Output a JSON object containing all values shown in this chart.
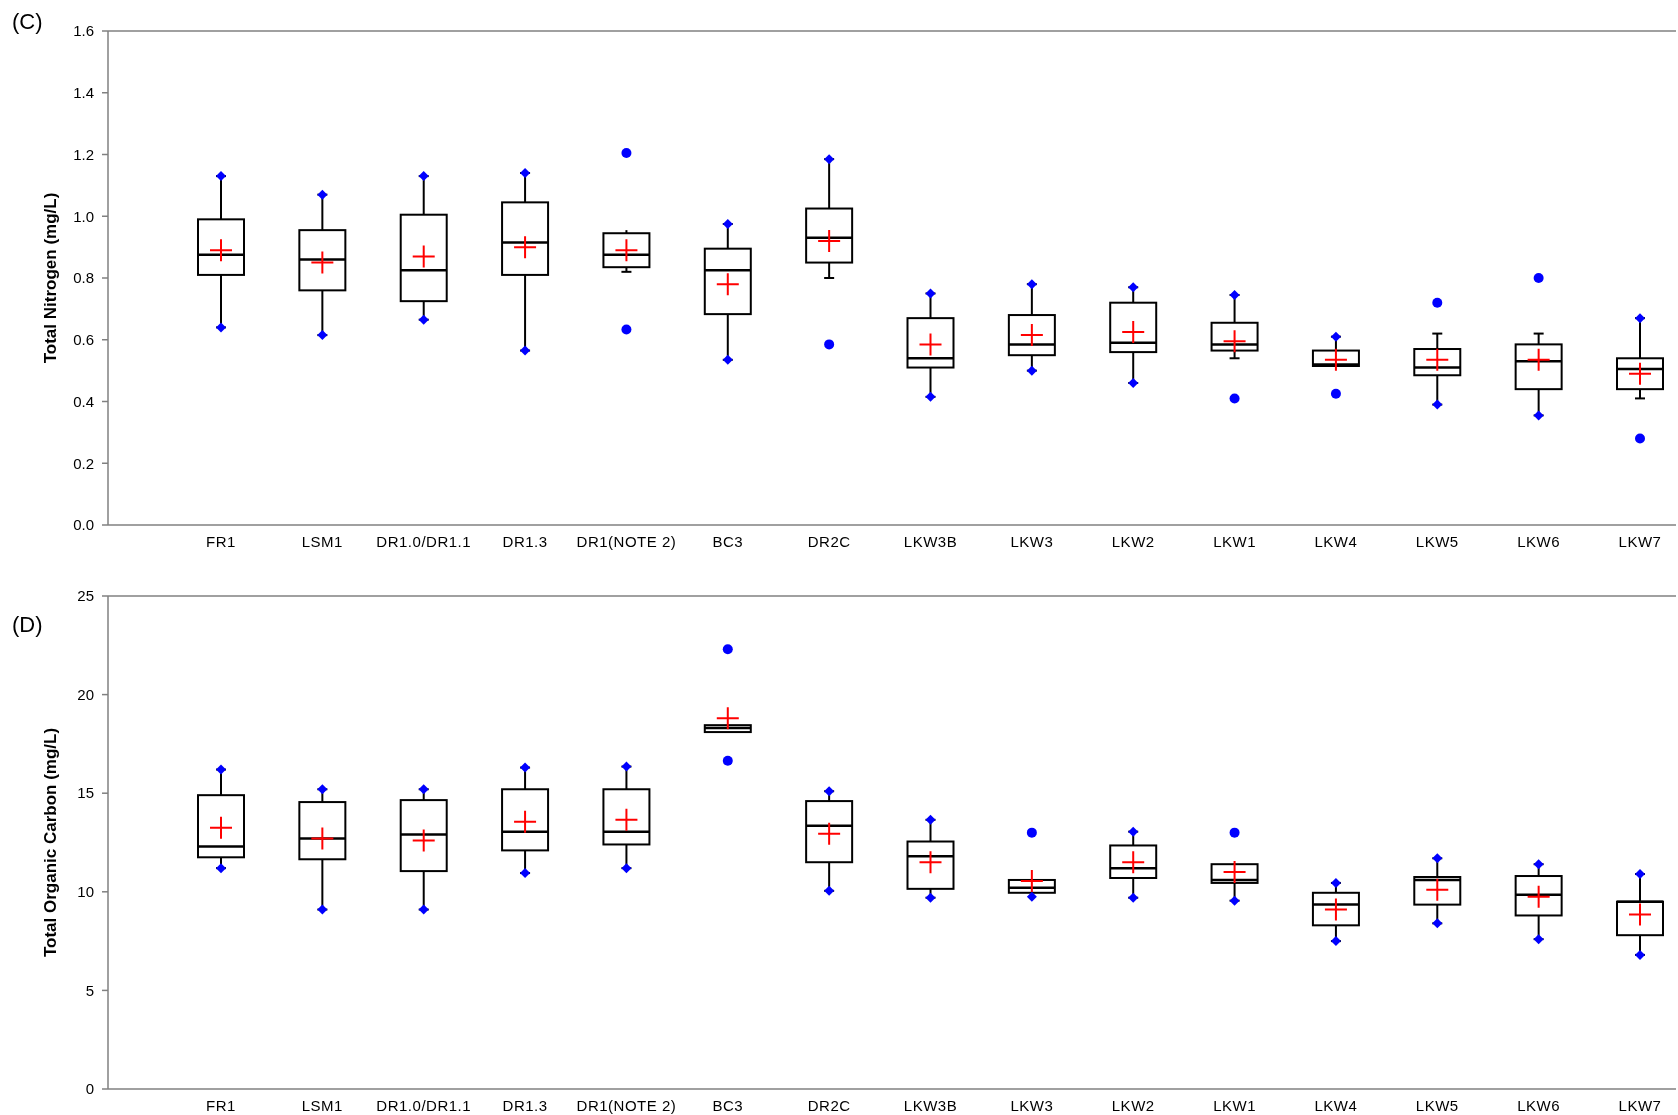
{
  "chart_data": [
    {
      "type": "box",
      "title": "(C)",
      "ylabel": "Total Nitrogen (mg/L)",
      "categories": [
        "FR1",
        "LSM1",
        "DR1.0/DR1.1",
        "DR1.3",
        "DR1(NOTE 2)",
        "BC3",
        "DR2C",
        "LKW3B",
        "LKW3",
        "LKW2",
        "LKW1",
        "LKW4",
        "LKW5",
        "LKW6",
        "LKW7"
      ],
      "ylim": [
        0,
        1.6
      ],
      "yticks": [
        {
          "value": 0,
          "label": "0.0"
        },
        0.2,
        0.4,
        0.6,
        0.8,
        {
          "value": 1,
          "label": "1.0"
        },
        1.2,
        1.4,
        1.6
      ],
      "boxes": [
        {
          "low": 0.64,
          "q1": 0.81,
          "median": 0.875,
          "q3": 0.99,
          "high": 1.13
        },
        {
          "low": 0.615,
          "q1": 0.76,
          "median": 0.86,
          "q3": 0.955,
          "high": 1.07
        },
        {
          "low": 0.665,
          "q1": 0.725,
          "median": 0.825,
          "q3": 1.005,
          "high": 1.13
        },
        {
          "low": 0.565,
          "q1": 0.81,
          "median": 0.915,
          "q3": 1.045,
          "high": 1.14
        },
        {
          "low": 0.82,
          "q1": 0.835,
          "median": 0.875,
          "q3": 0.945,
          "high": 0.955,
          "outliers": [
            1.205,
            0.633
          ]
        },
        {
          "low": 0.535,
          "q1": 0.683,
          "median": 0.825,
          "q3": 0.895,
          "high": 0.975
        },
        {
          "low": 0.8,
          "q1": 0.85,
          "median": 0.93,
          "q3": 1.025,
          "high": 1.185,
          "outliers": [
            0.585
          ]
        },
        {
          "low": 0.415,
          "q1": 0.51,
          "median": 0.54,
          "q3": 0.67,
          "high": 0.75
        },
        {
          "low": 0.5,
          "q1": 0.55,
          "median": 0.585,
          "q3": 0.68,
          "high": 0.78
        },
        {
          "low": 0.46,
          "q1": 0.56,
          "median": 0.59,
          "q3": 0.72,
          "high": 0.77
        },
        {
          "low": 0.54,
          "q1": 0.565,
          "median": 0.585,
          "q3": 0.655,
          "high": 0.745,
          "outliers": [
            0.41
          ]
        },
        {
          "low": 0.515,
          "q1": 0.515,
          "median": 0.52,
          "q3": 0.565,
          "high": 0.61,
          "outliers": [
            0.425
          ]
        },
        {
          "low": 0.39,
          "q1": 0.485,
          "median": 0.51,
          "q3": 0.57,
          "high": 0.62,
          "outliers": [
            0.72
          ]
        },
        {
          "low": 0.355,
          "q1": 0.44,
          "median": 0.53,
          "q3": 0.585,
          "high": 0.62,
          "outliers": [
            0.8
          ]
        },
        {
          "low": 0.41,
          "q1": 0.44,
          "median": 0.505,
          "q3": 0.54,
          "high": 0.67,
          "outliers": [
            0.28
          ]
        }
      ],
      "series": [
        {
          "type": "scatter",
          "marker": "cross",
          "color": "#ff0000",
          "x": [
            "FR1",
            "LSM1",
            "DR1.0/DR1.1",
            "DR1.3",
            "DR1(NOTE 2)",
            "BC3",
            "DR2C",
            "LKW3B",
            "LKW3",
            "LKW2",
            "LKW1",
            "LKW4",
            "LKW5",
            "LKW6",
            "LKW7"
          ],
          "values": [
            0.89,
            0.85,
            0.87,
            0.9,
            0.89,
            0.78,
            0.92,
            0.585,
            0.615,
            0.625,
            0.595,
            0.535,
            0.535,
            0.535,
            0.49
          ]
        },
        {
          "type": "scatter",
          "marker": "diamond",
          "color": "#0000ff",
          "x": [
            "FR1",
            "LSM1",
            "DR1.0/DR1.1",
            "DR1.3",
            "DR1(NOTE 2)",
            "BC3",
            "DR2C",
            "LKW3B",
            "LKW3",
            "LKW2",
            "LKW1",
            "LKW4",
            "LKW5",
            "LKW6",
            "LKW7"
          ],
          "values": [
            1.13,
            1.07,
            1.13,
            1.14,
            null,
            0.975,
            1.185,
            0.75,
            0.78,
            0.77,
            0.745,
            0.61,
            null,
            null,
            0.67
          ]
        },
        {
          "type": "scatter",
          "marker": "diamond",
          "color": "#0000ff",
          "x": [
            "FR1",
            "LSM1",
            "DR1.0/DR1.1",
            "DR1.3",
            "DR1(NOTE 2)",
            "BC3",
            "DR2C",
            "LKW3B",
            "LKW3",
            "LKW2",
            "LKW1",
            "LKW4",
            "LKW5",
            "LKW6",
            "LKW7"
          ],
          "values": [
            0.64,
            0.615,
            0.665,
            0.565,
            null,
            0.535,
            null,
            0.415,
            0.5,
            0.46,
            null,
            null,
            0.39,
            0.355,
            null
          ]
        }
      ]
    },
    {
      "type": "box",
      "title": "(D)",
      "ylabel": "Total Organic Carbon (mg/L)",
      "categories": [
        "FR1",
        "LSM1",
        "DR1.0/DR1.1",
        "DR1.3",
        "DR1(NOTE 2)",
        "BC3",
        "DR2C",
        "LKW3B",
        "LKW3",
        "LKW2",
        "LKW1",
        "LKW4",
        "LKW5",
        "LKW6",
        "LKW7"
      ],
      "ylim": [
        0,
        25
      ],
      "yticks": [
        0,
        5,
        10,
        15,
        20,
        25
      ],
      "boxes": [
        {
          "low": 11.2,
          "q1": 11.75,
          "median": 12.3,
          "q3": 14.9,
          "high": 16.2
        },
        {
          "low": 9.1,
          "q1": 11.65,
          "median": 12.7,
          "q3": 14.55,
          "high": 15.2
        },
        {
          "low": 9.1,
          "q1": 11.05,
          "median": 12.9,
          "q3": 14.65,
          "high": 15.2
        },
        {
          "low": 10.95,
          "q1": 12.1,
          "median": 13.05,
          "q3": 15.2,
          "high": 16.3
        },
        {
          "low": 11.2,
          "q1": 12.4,
          "median": 13.05,
          "q3": 15.2,
          "high": 16.35
        },
        {
          "low": 18.1,
          "q1": 18.1,
          "median": 18.3,
          "q3": 18.45,
          "high": 18.45,
          "outliers": [
            22.3,
            16.65
          ]
        },
        {
          "low": 10.05,
          "q1": 11.5,
          "median": 13.35,
          "q3": 14.6,
          "high": 15.1
        },
        {
          "low": 9.7,
          "q1": 10.15,
          "median": 11.8,
          "q3": 12.55,
          "high": 13.65
        },
        {
          "low": 9.75,
          "q1": 9.95,
          "median": 10.2,
          "q3": 10.6,
          "high": 10.65,
          "outliers": [
            13.0
          ]
        },
        {
          "low": 9.7,
          "q1": 10.7,
          "median": 11.2,
          "q3": 12.35,
          "high": 13.05
        },
        {
          "low": 9.55,
          "q1": 10.45,
          "median": 10.6,
          "q3": 11.4,
          "high": 11.45,
          "outliers": [
            13.0
          ]
        },
        {
          "low": 7.5,
          "q1": 8.3,
          "median": 9.35,
          "q3": 9.95,
          "high": 10.45
        },
        {
          "low": 8.4,
          "q1": 9.35,
          "median": 10.6,
          "q3": 10.75,
          "high": 11.7
        },
        {
          "low": 7.6,
          "q1": 8.8,
          "median": 9.85,
          "q3": 10.8,
          "high": 11.4
        },
        {
          "low": 6.8,
          "q1": 7.8,
          "median": 9.5,
          "q3": 9.5,
          "high": 10.9
        }
      ],
      "series": [
        {
          "type": "scatter",
          "marker": "cross",
          "color": "#ff0000",
          "x": [
            "FR1",
            "LSM1",
            "DR1.0/DR1.1",
            "DR1.3",
            "DR1(NOTE 2)",
            "BC3",
            "DR2C",
            "LKW3B",
            "LKW3",
            "LKW2",
            "LKW1",
            "LKW4",
            "LKW5",
            "LKW6",
            "LKW7"
          ],
          "values": [
            13.25,
            12.7,
            12.6,
            13.55,
            13.65,
            18.8,
            12.95,
            11.5,
            10.55,
            11.5,
            11.0,
            9.1,
            10.1,
            9.75,
            8.85
          ]
        },
        {
          "type": "scatter",
          "marker": "diamond",
          "color": "#0000ff",
          "x": [
            "FR1",
            "LSM1",
            "DR1.0/DR1.1",
            "DR1.3",
            "DR1(NOTE 2)",
            "BC3",
            "DR2C",
            "LKW3B",
            "LKW3",
            "LKW2",
            "LKW1",
            "LKW4",
            "LKW5",
            "LKW6",
            "LKW7"
          ],
          "values": [
            16.2,
            15.2,
            15.2,
            16.3,
            16.35,
            null,
            15.1,
            13.65,
            null,
            13.05,
            null,
            10.45,
            11.7,
            11.4,
            10.9
          ]
        },
        {
          "type": "scatter",
          "marker": "diamond",
          "color": "#0000ff",
          "x": [
            "FR1",
            "LSM1",
            "DR1.0/DR1.1",
            "DR1.3",
            "DR1(NOTE 2)",
            "BC3",
            "DR2C",
            "LKW3B",
            "LKW3",
            "LKW2",
            "LKW1",
            "LKW4",
            "LKW5",
            "LKW6",
            "LKW7"
          ],
          "values": [
            11.2,
            9.1,
            9.1,
            10.95,
            11.2,
            null,
            10.05,
            9.7,
            9.75,
            9.7,
            9.55,
            7.5,
            8.4,
            7.6,
            6.8
          ]
        }
      ]
    }
  ]
}
